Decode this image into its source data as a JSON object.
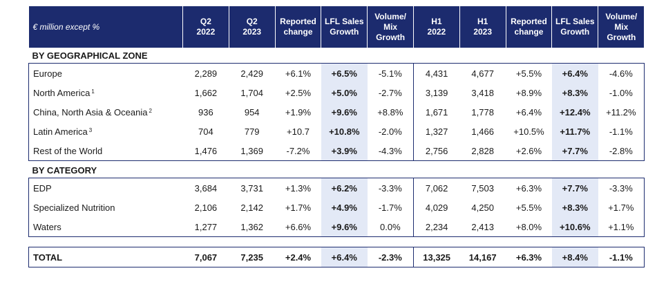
{
  "header": {
    "unit_label": "€ million except %",
    "cols": [
      [
        "Q2",
        "2022"
      ],
      [
        "Q2",
        "2023"
      ],
      [
        "Reported",
        "change"
      ],
      [
        "LFL Sales",
        "Growth"
      ],
      [
        "Volume/",
        "Mix",
        "Growth"
      ],
      [
        "H1",
        "2022"
      ],
      [
        "H1",
        "2023"
      ],
      [
        "Reported",
        "change"
      ],
      [
        "LFL Sales",
        "Growth"
      ],
      [
        "Volume/",
        "Mix",
        "Growth"
      ]
    ]
  },
  "geo_section": {
    "title": "BY GEOGRAPHICAL ZONE",
    "rows": [
      {
        "label": "Europe",
        "note": "",
        "values": [
          "2,289",
          "2,429",
          "+6.1%",
          "+6.5%",
          "-5.1%",
          "4,431",
          "4,677",
          "+5.5%",
          "+6.4%",
          "-4.6%"
        ]
      },
      {
        "label": "North America",
        "note": "1",
        "values": [
          "1,662",
          "1,704",
          "+2.5%",
          "+5.0%",
          "-2.7%",
          "3,139",
          "3,418",
          "+8.9%",
          "+8.3%",
          "-1.0%"
        ]
      },
      {
        "label": "China, North Asia & Oceania",
        "note": "2",
        "values": [
          "936",
          "954",
          "+1.9%",
          "+9.6%",
          "+8.8%",
          "1,671",
          "1,778",
          "+6.4%",
          "+12.4%",
          "+11.2%"
        ]
      },
      {
        "label": "Latin America",
        "note": "3",
        "values": [
          "704",
          "779",
          "+10.7",
          "+10.8%",
          "-2.0%",
          "1,327",
          "1,466",
          "+10.5%",
          "+11.7%",
          "-1.1%"
        ]
      },
      {
        "label": "Rest of the World",
        "note": "",
        "values": [
          "1,476",
          "1,369",
          "-7.2%",
          "+3.9%",
          "-4.3%",
          "2,756",
          "2,828",
          "+2.6%",
          "+7.7%",
          "-2.8%"
        ]
      }
    ]
  },
  "cat_section": {
    "title": "BY CATEGORY",
    "rows": [
      {
        "label": "EDP",
        "note": "",
        "values": [
          "3,684",
          "3,731",
          "+1.3%",
          "+6.2%",
          "-3.3%",
          "7,062",
          "7,503",
          "+6.3%",
          "+7.7%",
          "-3.3%"
        ]
      },
      {
        "label": "Specialized Nutrition",
        "note": "",
        "values": [
          "2,106",
          "2,142",
          "+1.7%",
          "+4.9%",
          "-1.7%",
          "4,029",
          "4,250",
          "+5.5%",
          "+8.3%",
          "+1.7%"
        ]
      },
      {
        "label": "Waters",
        "note": "",
        "values": [
          "1,277",
          "1,362",
          "+6.6%",
          "+9.6%",
          "0.0%",
          "2,234",
          "2,413",
          "+8.0%",
          "+10.6%",
          "+1.1%"
        ]
      }
    ]
  },
  "total": {
    "label": "TOTAL",
    "values": [
      "7,067",
      "7,235",
      "+2.4%",
      "+6.4%",
      "-2.3%",
      "13,325",
      "14,167",
      "+6.3%",
      "+8.4%",
      "-1.1%"
    ]
  }
}
